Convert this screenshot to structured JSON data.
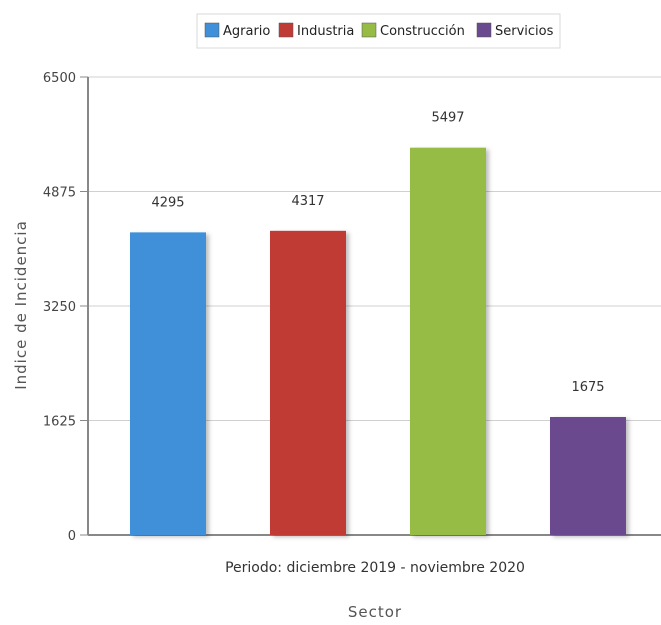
{
  "chart_data": {
    "type": "bar",
    "categories": [
      "Periodo: diciembre 2019 - noviembre 2020"
    ],
    "series": [
      {
        "name": "Agrario",
        "values": [
          4295
        ],
        "color": "#3f8fd9"
      },
      {
        "name": "Industria",
        "values": [
          4317
        ],
        "color": "#c13b36"
      },
      {
        "name": "Construcción",
        "values": [
          5497
        ],
        "color": "#97bc45"
      },
      {
        "name": "Servicios",
        "values": [
          1675
        ],
        "color": "#6a4a8e"
      }
    ],
    "xlabel": "Sector",
    "ylabel": "Indice de Incidencia",
    "ylim": [
      0,
      6500
    ],
    "yticks": [
      "0",
      "1625",
      "3250",
      "4875",
      "6500"
    ],
    "grid": true,
    "legend": "top-center"
  }
}
